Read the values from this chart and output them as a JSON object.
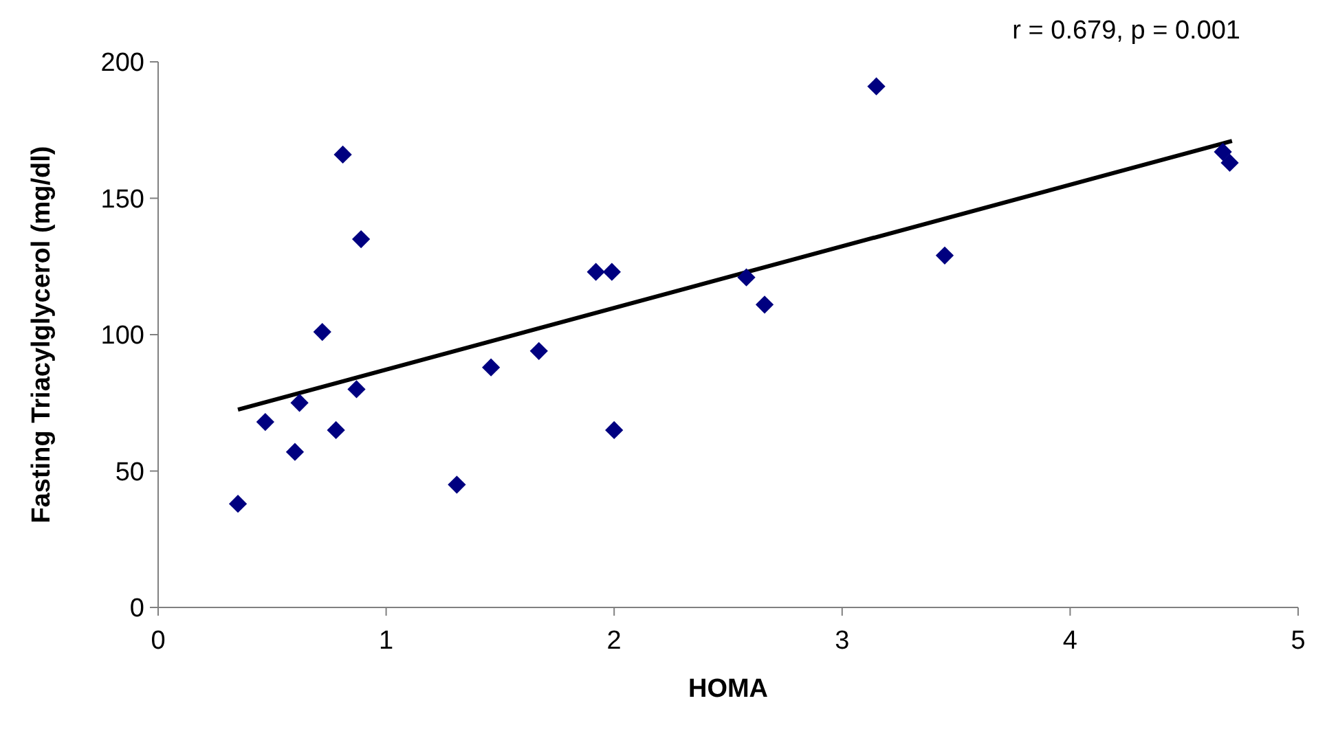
{
  "chart_data": {
    "type": "scatter",
    "xlabel": "HOMA",
    "ylabel": "Fasting Triacylglycerol (mg/dl)",
    "annotations": [
      "r = 0.679,  p = 0.001"
    ],
    "xlim": [
      0,
      5
    ],
    "xticks": [
      0,
      1,
      2,
      3,
      4,
      5
    ],
    "ylim": [
      0,
      200
    ],
    "yticks": [
      0,
      50,
      100,
      150,
      200
    ],
    "grid": false,
    "marker": "diamond",
    "series": [
      {
        "color": "#000080",
        "x": [
          0.35,
          0.47,
          0.6,
          0.62,
          0.72,
          0.78,
          0.81,
          0.87,
          0.89,
          1.31,
          1.46,
          1.67,
          1.92,
          1.99,
          2.0,
          2.58,
          2.66,
          3.15,
          3.45,
          4.67,
          4.7
        ],
        "values": [
          38,
          68,
          57,
          75,
          101,
          65,
          166,
          80,
          135,
          45,
          88,
          94,
          123,
          123,
          65,
          121,
          111,
          191,
          129,
          167,
          163
        ]
      },
      {
        "type": "line",
        "color": "#000000",
        "marker": "none",
        "x": [
          0.35,
          4.71
        ],
        "values": [
          72.5,
          171
        ]
      }
    ]
  }
}
